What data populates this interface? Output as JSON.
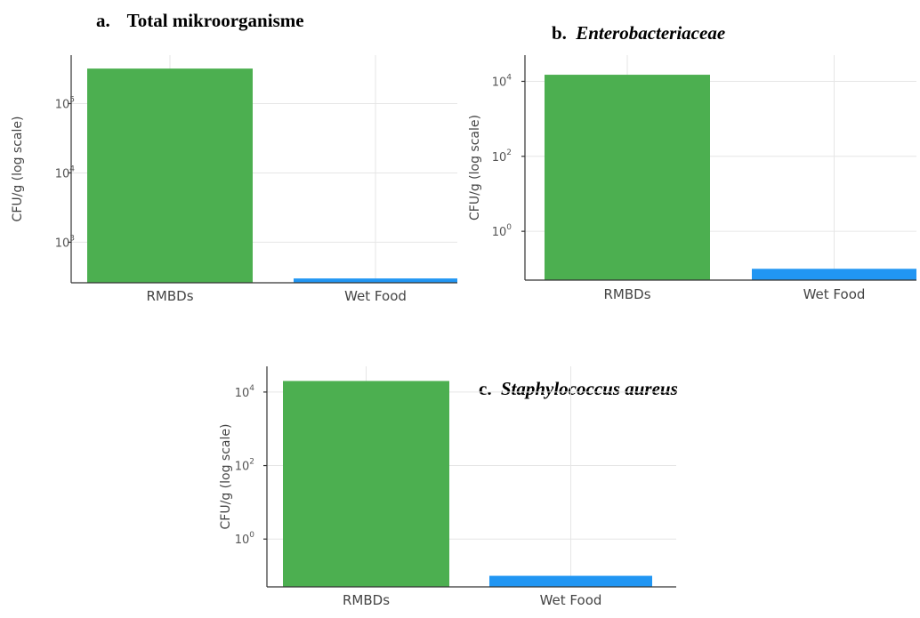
{
  "chart_data": [
    {
      "type": "bar",
      "panel_label": "a.",
      "title": "Total mikroorganisme",
      "title_italic": false,
      "categories": [
        "RMBDs",
        "Wet Food"
      ],
      "values": [
        320000,
        300
      ],
      "ylabel": "CFU/g (log scale)",
      "yscale": "log",
      "ylim": [
        260,
        500000
      ],
      "yticks": [
        1000,
        10000,
        100000
      ],
      "ytick_labels": [
        [
          "10",
          "3"
        ],
        [
          "10",
          "4"
        ],
        [
          "10",
          "5"
        ]
      ],
      "colors": [
        "#4caf50",
        "#2196f3"
      ],
      "grid": true
    },
    {
      "type": "bar",
      "panel_label": "b.",
      "title": "Enterobacteriaceae",
      "title_italic": true,
      "categories": [
        "RMBDs",
        "Wet Food"
      ],
      "values": [
        15000,
        0.1
      ],
      "ylabel": "CFU/g (log scale)",
      "yscale": "log",
      "ylim": [
        0.05,
        50000
      ],
      "yticks": [
        1,
        100,
        10000
      ],
      "ytick_labels": [
        [
          "10",
          "0"
        ],
        [
          "10",
          "2"
        ],
        [
          "10",
          "4"
        ]
      ],
      "colors": [
        "#4caf50",
        "#2196f3"
      ],
      "grid": true
    },
    {
      "type": "bar",
      "panel_label": "c.",
      "title": "Staphylococcus aureus",
      "title_italic": true,
      "categories": [
        "RMBDs",
        "Wet Food"
      ],
      "values": [
        20000,
        0.1
      ],
      "ylabel": "CFU/g (log scale)",
      "yscale": "log",
      "ylim": [
        0.05,
        50000
      ],
      "yticks": [
        1,
        100,
        10000
      ],
      "ytick_labels": [
        [
          "10",
          "0"
        ],
        [
          "10",
          "2"
        ],
        [
          "10",
          "4"
        ]
      ],
      "colors": [
        "#4caf50",
        "#2196f3"
      ],
      "grid": true
    }
  ]
}
